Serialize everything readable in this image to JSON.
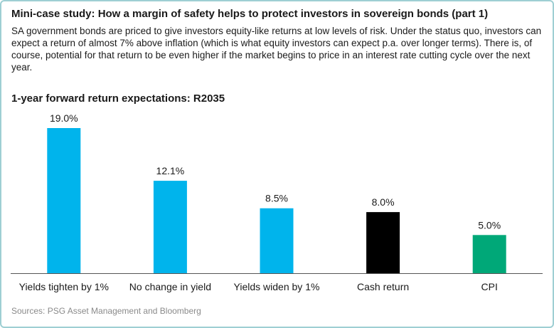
{
  "header": {
    "title": "Mini-case study: How a margin of safety helps to protect investors in sovereign bonds (part 1)",
    "description": "SA government bonds are priced to give investors equity-like returns at low levels of risk. Under the status quo, investors can expect a return of almost 7% above inflation (which is what equity investors can expect p.a. over longer terms). There is, of course, potential for that return to be even higher if the market begins to price in an interest rate cutting cycle over the next year."
  },
  "chart_data": {
    "type": "bar",
    "title": "1-year forward return expectations: R2035",
    "categories": [
      "Yields tighten by 1%",
      "No change in yield",
      "Yields widen by 1%",
      "Cash return",
      "CPI"
    ],
    "values": [
      19.0,
      12.1,
      8.5,
      8.0,
      5.0
    ],
    "data_labels": [
      "19.0%",
      "12.1%",
      "8.5%",
      "8.0%",
      "5.0%"
    ],
    "colors": [
      "#00b4ec",
      "#00b4ec",
      "#00b4ec",
      "#000000",
      "#00a878"
    ],
    "ylim": [
      0,
      19.0
    ],
    "grid": false,
    "legend": "none"
  },
  "footer": {
    "source": "Sources: PSG Asset Management and Bloomberg"
  },
  "style": {
    "axis_color": "#555555",
    "border_color": "#9ecfd3"
  }
}
